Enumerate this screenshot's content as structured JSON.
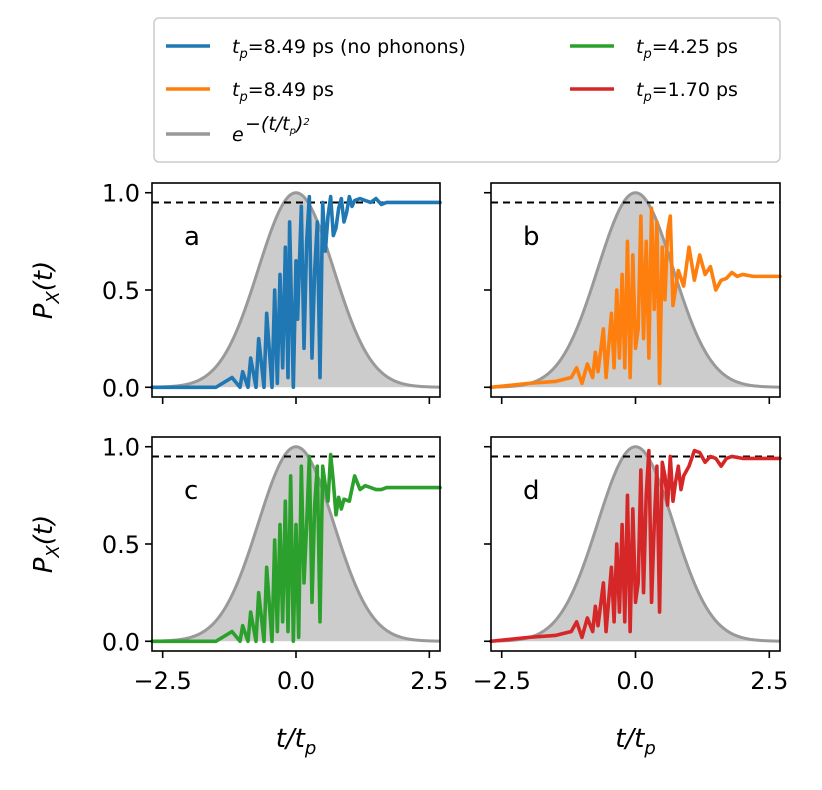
{
  "chart_data": {
    "type": "line",
    "title": "",
    "xlabel": "t/t_p",
    "ylabel": "P_X(t)",
    "xlim": [
      -2.7,
      2.7
    ],
    "ylim": [
      -0.05,
      1.05
    ],
    "xticks": [
      -2.5,
      0.0,
      2.5
    ],
    "xtick_labels": [
      "−2.5",
      "0.0",
      "2.5"
    ],
    "yticks": [
      0.0,
      0.5,
      1.0
    ],
    "ytick_labels": [
      "0.0",
      "0.5",
      "1.0"
    ],
    "threshold": 0.95,
    "legend": {
      "placement": "top",
      "entries": [
        {
          "key": "nophonon",
          "label": "=8.49 ps (no phonons)",
          "color": "#1f77b4"
        },
        {
          "key": "tp425",
          "label": "=4.25 ps",
          "color": "#2ca02c"
        },
        {
          "key": "tp849",
          "label": "=8.49 ps",
          "color": "#ff7f0e"
        },
        {
          "key": "tp170",
          "label": "=1.70 ps",
          "color": "#d62728"
        },
        {
          "key": "gauss",
          "label": "e^{-(t/t_p)^2}",
          "color": "#999999"
        }
      ]
    },
    "envelope": {
      "color": "#999999",
      "fill": "#cccccc"
    },
    "series": [
      {
        "panel": "a",
        "name": "t_p=8.49 ps (no phonons)",
        "color": "#1f77b4",
        "x": [
          -2.7,
          -1.5,
          -1.2,
          -1.05,
          -1.0,
          -0.9,
          -0.85,
          -0.75,
          -0.7,
          -0.6,
          -0.55,
          -0.45,
          -0.4,
          -0.35,
          -0.3,
          -0.25,
          -0.2,
          -0.15,
          -0.12,
          -0.05,
          0.0,
          0.03,
          0.1,
          0.15,
          0.2,
          0.25,
          0.3,
          0.35,
          0.4,
          0.45,
          0.5,
          0.55,
          0.6,
          0.65,
          0.7,
          0.75,
          0.8,
          0.85,
          0.9,
          0.95,
          1.0,
          1.05,
          1.1,
          1.2,
          1.3,
          1.4,
          1.5,
          1.6,
          1.7,
          1.8,
          2.0,
          2.2,
          2.4,
          2.7
        ],
        "values": [
          0.0,
          0.0,
          0.05,
          0.0,
          0.08,
          0.0,
          0.15,
          0.0,
          0.25,
          0.0,
          0.38,
          0.0,
          0.5,
          0.02,
          0.58,
          0.1,
          0.72,
          0.05,
          0.85,
          0.0,
          0.65,
          0.35,
          0.93,
          0.2,
          0.75,
          0.98,
          0.15,
          0.6,
          0.85,
          0.05,
          0.95,
          0.7,
          0.88,
          0.98,
          0.78,
          0.82,
          0.92,
          0.97,
          0.85,
          0.9,
          0.98,
          0.93,
          0.96,
          0.97,
          0.96,
          0.95,
          0.97,
          0.94,
          0.95,
          0.95,
          0.95,
          0.95,
          0.95,
          0.95
        ]
      },
      {
        "panel": "b",
        "name": "t_p=8.49 ps",
        "color": "#ff7f0e",
        "x": [
          -2.7,
          -2.0,
          -1.5,
          -1.2,
          -1.1,
          -1.0,
          -0.9,
          -0.8,
          -0.75,
          -0.7,
          -0.6,
          -0.55,
          -0.45,
          -0.4,
          -0.35,
          -0.3,
          -0.25,
          -0.2,
          -0.15,
          -0.1,
          -0.05,
          0.0,
          0.05,
          0.1,
          0.15,
          0.2,
          0.25,
          0.3,
          0.35,
          0.4,
          0.45,
          0.5,
          0.55,
          0.6,
          0.65,
          0.7,
          0.8,
          0.9,
          1.0,
          1.1,
          1.2,
          1.3,
          1.4,
          1.5,
          1.6,
          1.7,
          1.8,
          1.9,
          2.0,
          2.2,
          2.4,
          2.7
        ],
        "values": [
          0.0,
          0.02,
          0.03,
          0.05,
          0.1,
          0.02,
          0.12,
          0.05,
          0.18,
          0.08,
          0.3,
          0.05,
          0.38,
          0.1,
          0.5,
          0.15,
          0.58,
          0.1,
          0.75,
          0.05,
          0.68,
          0.2,
          0.3,
          0.88,
          0.25,
          0.75,
          0.15,
          0.92,
          0.4,
          0.85,
          0.02,
          0.72,
          0.45,
          0.8,
          0.88,
          0.42,
          0.6,
          0.52,
          0.72,
          0.55,
          0.68,
          0.58,
          0.62,
          0.5,
          0.55,
          0.56,
          0.59,
          0.57,
          0.58,
          0.57,
          0.57,
          0.57
        ]
      },
      {
        "panel": "c",
        "name": "t_p=4.25 ps",
        "color": "#2ca02c",
        "x": [
          -2.7,
          -1.5,
          -1.2,
          -1.05,
          -1.0,
          -0.9,
          -0.85,
          -0.75,
          -0.7,
          -0.6,
          -0.55,
          -0.45,
          -0.4,
          -0.35,
          -0.3,
          -0.25,
          -0.2,
          -0.15,
          -0.1,
          -0.05,
          0.0,
          0.05,
          0.1,
          0.15,
          0.2,
          0.25,
          0.3,
          0.35,
          0.4,
          0.45,
          0.5,
          0.55,
          0.6,
          0.65,
          0.7,
          0.75,
          0.8,
          0.85,
          0.9,
          1.0,
          1.1,
          1.2,
          1.3,
          1.4,
          1.5,
          1.6,
          1.7,
          1.8,
          2.0,
          2.2,
          2.4,
          2.7
        ],
        "values": [
          0.0,
          0.0,
          0.05,
          0.0,
          0.08,
          0.0,
          0.15,
          0.0,
          0.25,
          0.0,
          0.38,
          0.0,
          0.52,
          0.05,
          0.6,
          0.1,
          0.72,
          0.05,
          0.85,
          0.0,
          0.6,
          0.02,
          0.9,
          0.3,
          0.6,
          0.95,
          0.2,
          0.7,
          0.9,
          0.1,
          0.9,
          0.8,
          0.72,
          0.96,
          0.82,
          0.65,
          0.74,
          0.68,
          0.73,
          0.72,
          0.85,
          0.78,
          0.8,
          0.79,
          0.78,
          0.78,
          0.79,
          0.79,
          0.79,
          0.79,
          0.79,
          0.79
        ]
      },
      {
        "panel": "d",
        "name": "t_p=1.70 ps",
        "color": "#d62728",
        "x": [
          -2.7,
          -2.0,
          -1.5,
          -1.2,
          -1.1,
          -1.0,
          -0.9,
          -0.8,
          -0.75,
          -0.7,
          -0.6,
          -0.55,
          -0.45,
          -0.4,
          -0.35,
          -0.3,
          -0.25,
          -0.2,
          -0.15,
          -0.1,
          -0.05,
          0.0,
          0.05,
          0.1,
          0.15,
          0.2,
          0.25,
          0.3,
          0.35,
          0.4,
          0.45,
          0.5,
          0.55,
          0.6,
          0.65,
          0.7,
          0.75,
          0.8,
          0.85,
          0.9,
          1.0,
          1.1,
          1.2,
          1.3,
          1.4,
          1.5,
          1.6,
          1.7,
          1.8,
          2.0,
          2.2,
          2.4,
          2.7
        ],
        "values": [
          0.0,
          0.02,
          0.03,
          0.05,
          0.1,
          0.02,
          0.12,
          0.05,
          0.18,
          0.08,
          0.3,
          0.05,
          0.38,
          0.1,
          0.5,
          0.15,
          0.6,
          0.1,
          0.75,
          0.05,
          0.68,
          0.2,
          0.3,
          0.88,
          0.25,
          0.75,
          0.98,
          0.2,
          0.6,
          0.9,
          0.15,
          0.92,
          0.85,
          0.7,
          0.95,
          0.72,
          0.82,
          0.9,
          0.78,
          0.85,
          0.9,
          0.98,
          0.97,
          0.92,
          0.95,
          0.94,
          0.9,
          0.94,
          0.95,
          0.94,
          0.94,
          0.94,
          0.94
        ]
      }
    ],
    "panels": [
      {
        "id": "a",
        "letter": "a",
        "series": 0,
        "show_xticklabels": false,
        "show_yticklabels": true,
        "show_ylabel": true,
        "show_xlabel": false
      },
      {
        "id": "b",
        "letter": "b",
        "series": 1,
        "show_xticklabels": false,
        "show_yticklabels": false,
        "show_ylabel": false,
        "show_xlabel": false
      },
      {
        "id": "c",
        "letter": "c",
        "series": 2,
        "show_xticklabels": true,
        "show_yticklabels": true,
        "show_ylabel": true,
        "show_xlabel": true
      },
      {
        "id": "d",
        "letter": "d",
        "series": 3,
        "show_xticklabels": true,
        "show_yticklabels": false,
        "show_ylabel": false,
        "show_xlabel": true
      }
    ]
  }
}
